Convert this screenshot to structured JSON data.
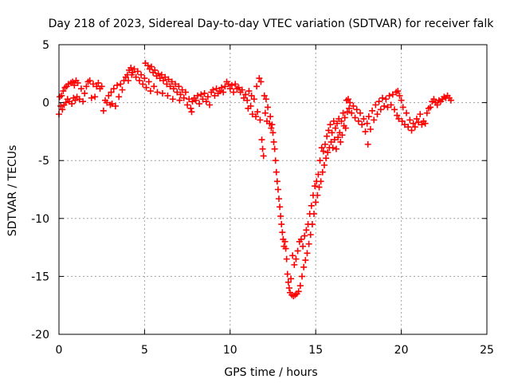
{
  "chart_data": {
    "type": "scatter",
    "title": "Day 218 of 2023, Sidereal Day-to-day VTEC variation (SDTVAR) for receiver falk",
    "xlabel": "GPS time / hours",
    "ylabel": "SDTVAR / TECUs",
    "xlim": [
      0,
      25
    ],
    "ylim": [
      -20,
      5
    ],
    "xticks": [
      0,
      5,
      10,
      15,
      20,
      25
    ],
    "yticks": [
      5,
      0,
      -5,
      -10,
      -15,
      -20
    ],
    "xtick_labels": [
      "0",
      "5",
      "10",
      "15",
      "20",
      "25"
    ],
    "ytick_labels": [
      "5",
      "0",
      "-5",
      "-10",
      "-15",
      "-20"
    ],
    "grid": true,
    "marker": "+",
    "series": [
      {
        "name": "SDTVAR",
        "color": "#ff0000",
        "points": [
          [
            0.0,
            -1.0
          ],
          [
            0.05,
            0.5
          ],
          [
            0.1,
            -0.3
          ],
          [
            0.15,
            0.6
          ],
          [
            0.2,
            -0.6
          ],
          [
            0.25,
            1.0
          ],
          [
            0.3,
            -0.2
          ],
          [
            0.35,
            1.3
          ],
          [
            0.4,
            0.0
          ],
          [
            0.45,
            1.4
          ],
          [
            0.5,
            0.3
          ],
          [
            0.55,
            1.6
          ],
          [
            0.6,
            0.1
          ],
          [
            0.7,
            1.7
          ],
          [
            0.75,
            -0.1
          ],
          [
            0.8,
            1.8
          ],
          [
            0.85,
            0.4
          ],
          [
            0.9,
            1.5
          ],
          [
            0.95,
            0.2
          ],
          [
            1.0,
            1.9
          ],
          [
            1.05,
            0.5
          ],
          [
            1.1,
            1.7
          ],
          [
            1.2,
            0.3
          ],
          [
            1.3,
            1.2
          ],
          [
            1.4,
            0.1
          ],
          [
            1.5,
            0.8
          ],
          [
            1.6,
            1.4
          ],
          [
            1.7,
            1.8
          ],
          [
            1.8,
            1.9
          ],
          [
            1.9,
            0.4
          ],
          [
            2.0,
            1.6
          ],
          [
            2.1,
            0.5
          ],
          [
            2.2,
            1.4
          ],
          [
            2.3,
            1.7
          ],
          [
            2.4,
            1.2
          ],
          [
            2.5,
            1.4
          ],
          [
            2.6,
            -0.7
          ],
          [
            2.7,
            0.2
          ],
          [
            2.8,
            0.0
          ],
          [
            2.9,
            0.6
          ],
          [
            3.0,
            -0.2
          ],
          [
            3.05,
            0.9
          ],
          [
            3.1,
            -0.1
          ],
          [
            3.2,
            1.2
          ],
          [
            3.3,
            -0.3
          ],
          [
            3.4,
            1.5
          ],
          [
            3.5,
            0.5
          ],
          [
            3.6,
            1.6
          ],
          [
            3.7,
            1.1
          ],
          [
            3.8,
            1.9
          ],
          [
            3.9,
            2.2
          ],
          [
            4.0,
            2.4
          ],
          [
            4.05,
            1.9
          ],
          [
            4.1,
            2.8
          ],
          [
            4.2,
            3.0
          ],
          [
            4.25,
            2.4
          ],
          [
            4.3,
            2.6
          ],
          [
            4.4,
            2.9
          ],
          [
            4.5,
            2.2
          ],
          [
            4.6,
            2.7
          ],
          [
            4.7,
            1.9
          ],
          [
            4.8,
            2.4
          ],
          [
            4.9,
            1.6
          ],
          [
            5.0,
            2.1
          ],
          [
            5.05,
            3.4
          ],
          [
            5.1,
            1.3
          ],
          [
            5.2,
            3.2
          ],
          [
            5.25,
            1.8
          ],
          [
            5.3,
            2.9
          ],
          [
            5.35,
            1.0
          ],
          [
            5.4,
            3.1
          ],
          [
            5.5,
            2.6
          ],
          [
            5.55,
            1.4
          ],
          [
            5.6,
            2.8
          ],
          [
            5.7,
            2.3
          ],
          [
            5.75,
            0.9
          ],
          [
            5.8,
            2.5
          ],
          [
            5.9,
            2.1
          ],
          [
            6.0,
            2.4
          ],
          [
            6.05,
            0.8
          ],
          [
            6.1,
            1.9
          ],
          [
            6.2,
            2.2
          ],
          [
            6.3,
            1.6
          ],
          [
            6.35,
            0.6
          ],
          [
            6.4,
            2.0
          ],
          [
            6.5,
            1.4
          ],
          [
            6.6,
            1.8
          ],
          [
            6.65,
            0.3
          ],
          [
            6.7,
            1.2
          ],
          [
            6.8,
            1.6
          ],
          [
            6.9,
            0.9
          ],
          [
            7.0,
            1.4
          ],
          [
            7.05,
            0.2
          ],
          [
            7.1,
            0.7
          ],
          [
            7.2,
            1.1
          ],
          [
            7.3,
            0.4
          ],
          [
            7.4,
            0.9
          ],
          [
            7.5,
            -0.2
          ],
          [
            7.6,
            0.3
          ],
          [
            7.7,
            -0.5
          ],
          [
            7.75,
            -0.8
          ],
          [
            7.8,
            0.1
          ],
          [
            7.9,
            0.4
          ],
          [
            8.0,
            0.2
          ],
          [
            8.1,
            0.6
          ],
          [
            8.2,
            -0.1
          ],
          [
            8.3,
            0.7
          ],
          [
            8.4,
            0.3
          ],
          [
            8.5,
            0.8
          ],
          [
            8.6,
            0.1
          ],
          [
            8.7,
            0.5
          ],
          [
            8.8,
            -0.2
          ],
          [
            8.9,
            0.9
          ],
          [
            9.0,
            1.1
          ],
          [
            9.1,
            0.6
          ],
          [
            9.2,
            1.2
          ],
          [
            9.3,
            0.8
          ],
          [
            9.4,
            1.0
          ],
          [
            9.5,
            1.3
          ],
          [
            9.6,
            0.9
          ],
          [
            9.7,
            1.4
          ],
          [
            9.8,
            1.8
          ],
          [
            9.9,
            1.6
          ],
          [
            10.0,
            1.2
          ],
          [
            10.1,
            1.5
          ],
          [
            10.2,
            0.9
          ],
          [
            10.3,
            1.6
          ],
          [
            10.4,
            1.2
          ],
          [
            10.5,
            1.3
          ],
          [
            10.6,
            0.9
          ],
          [
            10.7,
            1.1
          ],
          [
            10.8,
            0.4
          ],
          [
            10.9,
            0.7
          ],
          [
            11.0,
            0.2
          ],
          [
            11.05,
            -0.5
          ],
          [
            11.1,
            1.0
          ],
          [
            11.2,
            -0.3
          ],
          [
            11.25,
            0.6
          ],
          [
            11.3,
            -1.0
          ],
          [
            11.4,
            0.3
          ],
          [
            11.5,
            -1.2
          ],
          [
            11.55,
            1.4
          ],
          [
            11.6,
            -0.8
          ],
          [
            11.7,
            2.1
          ],
          [
            11.75,
            -1.5
          ],
          [
            11.8,
            1.8
          ],
          [
            11.85,
            -3.2
          ],
          [
            11.9,
            -4.0
          ],
          [
            11.95,
            -4.6
          ],
          [
            12.0,
            0.6
          ],
          [
            12.05,
            -0.9
          ],
          [
            12.1,
            0.3
          ],
          [
            12.15,
            -1.6
          ],
          [
            12.2,
            -0.4
          ],
          [
            12.3,
            -1.8
          ],
          [
            12.35,
            -1.2
          ],
          [
            12.4,
            -2.2
          ],
          [
            12.45,
            -1.9
          ],
          [
            12.5,
            -2.6
          ],
          [
            12.55,
            -3.4
          ],
          [
            12.6,
            -4.0
          ],
          [
            12.65,
            -5.0
          ],
          [
            12.7,
            -6.0
          ],
          [
            12.75,
            -6.8
          ],
          [
            12.8,
            -7.5
          ],
          [
            12.85,
            -8.3
          ],
          [
            12.9,
            -9.0
          ],
          [
            12.95,
            -9.8
          ],
          [
            13.0,
            -10.5
          ],
          [
            13.05,
            -11.2
          ],
          [
            13.1,
            -11.8
          ],
          [
            13.15,
            -12.4
          ],
          [
            13.2,
            -12.0
          ],
          [
            13.25,
            -12.6
          ],
          [
            13.3,
            -13.5
          ],
          [
            13.35,
            -14.8
          ],
          [
            13.4,
            -15.5
          ],
          [
            13.45,
            -16.0
          ],
          [
            13.5,
            -16.4
          ],
          [
            13.55,
            -15.2
          ],
          [
            13.6,
            -16.6
          ],
          [
            13.65,
            -13.2
          ],
          [
            13.7,
            -16.7
          ],
          [
            13.75,
            -14.0
          ],
          [
            13.8,
            -16.6
          ],
          [
            13.85,
            -13.5
          ],
          [
            13.9,
            -16.5
          ],
          [
            13.95,
            -12.8
          ],
          [
            14.0,
            -16.3
          ],
          [
            14.05,
            -12.0
          ],
          [
            14.1,
            -15.8
          ],
          [
            14.15,
            -11.8
          ],
          [
            14.2,
            -15.0
          ],
          [
            14.25,
            -12.4
          ],
          [
            14.3,
            -14.2
          ],
          [
            14.35,
            -11.5
          ],
          [
            14.4,
            -13.6
          ],
          [
            14.45,
            -11.0
          ],
          [
            14.5,
            -13.0
          ],
          [
            14.55,
            -10.5
          ],
          [
            14.6,
            -12.2
          ],
          [
            14.65,
            -9.6
          ],
          [
            14.7,
            -11.4
          ],
          [
            14.75,
            -8.9
          ],
          [
            14.8,
            -10.5
          ],
          [
            14.85,
            -8.0
          ],
          [
            14.9,
            -9.6
          ],
          [
            14.95,
            -7.2
          ],
          [
            15.0,
            -8.6
          ],
          [
            15.05,
            -6.8
          ],
          [
            15.1,
            -8.0
          ],
          [
            15.15,
            -6.2
          ],
          [
            15.2,
            -7.3
          ],
          [
            15.25,
            -5.0
          ],
          [
            15.3,
            -6.8
          ],
          [
            15.35,
            -3.9
          ],
          [
            15.4,
            -6.0
          ],
          [
            15.45,
            -4.2
          ],
          [
            15.5,
            -5.4
          ],
          [
            15.55,
            -3.6
          ],
          [
            15.6,
            -4.8
          ],
          [
            15.65,
            -2.9
          ],
          [
            15.7,
            -4.3
          ],
          [
            15.75,
            -2.4
          ],
          [
            15.8,
            -3.9
          ],
          [
            15.85,
            -1.9
          ],
          [
            15.9,
            -3.4
          ],
          [
            15.95,
            -2.6
          ],
          [
            16.0,
            -3.9
          ],
          [
            16.05,
            -1.6
          ],
          [
            16.1,
            -3.2
          ],
          [
            16.15,
            -2.2
          ],
          [
            16.2,
            -4.0
          ],
          [
            16.25,
            -1.8
          ],
          [
            16.3,
            -3.0
          ],
          [
            16.35,
            -1.4
          ],
          [
            16.4,
            -2.6
          ],
          [
            16.45,
            -3.4
          ],
          [
            16.5,
            -1.6
          ],
          [
            16.55,
            -2.8
          ],
          [
            16.6,
            -0.9
          ],
          [
            16.65,
            -2.0
          ],
          [
            16.7,
            -1.3
          ],
          [
            16.75,
            -2.2
          ],
          [
            16.8,
            0.2
          ],
          [
            16.85,
            -0.8
          ],
          [
            16.9,
            0.3
          ],
          [
            16.95,
            -0.5
          ],
          [
            17.0,
            0.0
          ],
          [
            17.1,
            -0.9
          ],
          [
            17.2,
            -0.3
          ],
          [
            17.3,
            -1.3
          ],
          [
            17.4,
            -0.6
          ],
          [
            17.5,
            -1.6
          ],
          [
            17.6,
            -0.9
          ],
          [
            17.7,
            -1.9
          ],
          [
            17.8,
            -1.4
          ],
          [
            17.9,
            -2.5
          ],
          [
            18.0,
            -1.8
          ],
          [
            18.05,
            -3.6
          ],
          [
            18.1,
            -1.2
          ],
          [
            18.2,
            -2.3
          ],
          [
            18.3,
            -0.7
          ],
          [
            18.4,
            -1.5
          ],
          [
            18.5,
            -0.2
          ],
          [
            18.6,
            -1.0
          ],
          [
            18.7,
            0.1
          ],
          [
            18.8,
            -0.6
          ],
          [
            18.9,
            0.4
          ],
          [
            19.0,
            -0.3
          ],
          [
            19.1,
            0.3
          ],
          [
            19.2,
            -0.4
          ],
          [
            19.3,
            0.6
          ],
          [
            19.4,
            -0.2
          ],
          [
            19.5,
            0.7
          ],
          [
            19.6,
            -0.6
          ],
          [
            19.7,
            0.9
          ],
          [
            19.75,
            -1.1
          ],
          [
            19.8,
            1.0
          ],
          [
            19.85,
            -1.4
          ],
          [
            19.9,
            0.6
          ],
          [
            20.0,
            0.2
          ],
          [
            20.05,
            -1.6
          ],
          [
            20.1,
            -0.4
          ],
          [
            20.2,
            -1.9
          ],
          [
            20.3,
            -0.9
          ],
          [
            20.4,
            -2.1
          ],
          [
            20.5,
            -1.5
          ],
          [
            20.6,
            -2.4
          ],
          [
            20.7,
            -1.8
          ],
          [
            20.8,
            -2.1
          ],
          [
            20.9,
            -1.4
          ],
          [
            21.0,
            -1.7
          ],
          [
            21.1,
            -1.0
          ],
          [
            21.2,
            -1.9
          ],
          [
            21.3,
            -1.6
          ],
          [
            21.4,
            -1.8
          ],
          [
            21.5,
            -0.9
          ],
          [
            21.6,
            -0.5
          ],
          [
            21.7,
            -0.4
          ],
          [
            21.8,
            0.1
          ],
          [
            21.9,
            0.3
          ],
          [
            22.0,
            0.0
          ],
          [
            22.1,
            -0.2
          ],
          [
            22.2,
            0.2
          ],
          [
            22.3,
            0.1
          ],
          [
            22.4,
            0.3
          ],
          [
            22.5,
            0.5
          ],
          [
            22.6,
            0.4
          ],
          [
            22.7,
            0.6
          ],
          [
            22.8,
            0.4
          ],
          [
            22.9,
            0.2
          ]
        ]
      }
    ]
  }
}
